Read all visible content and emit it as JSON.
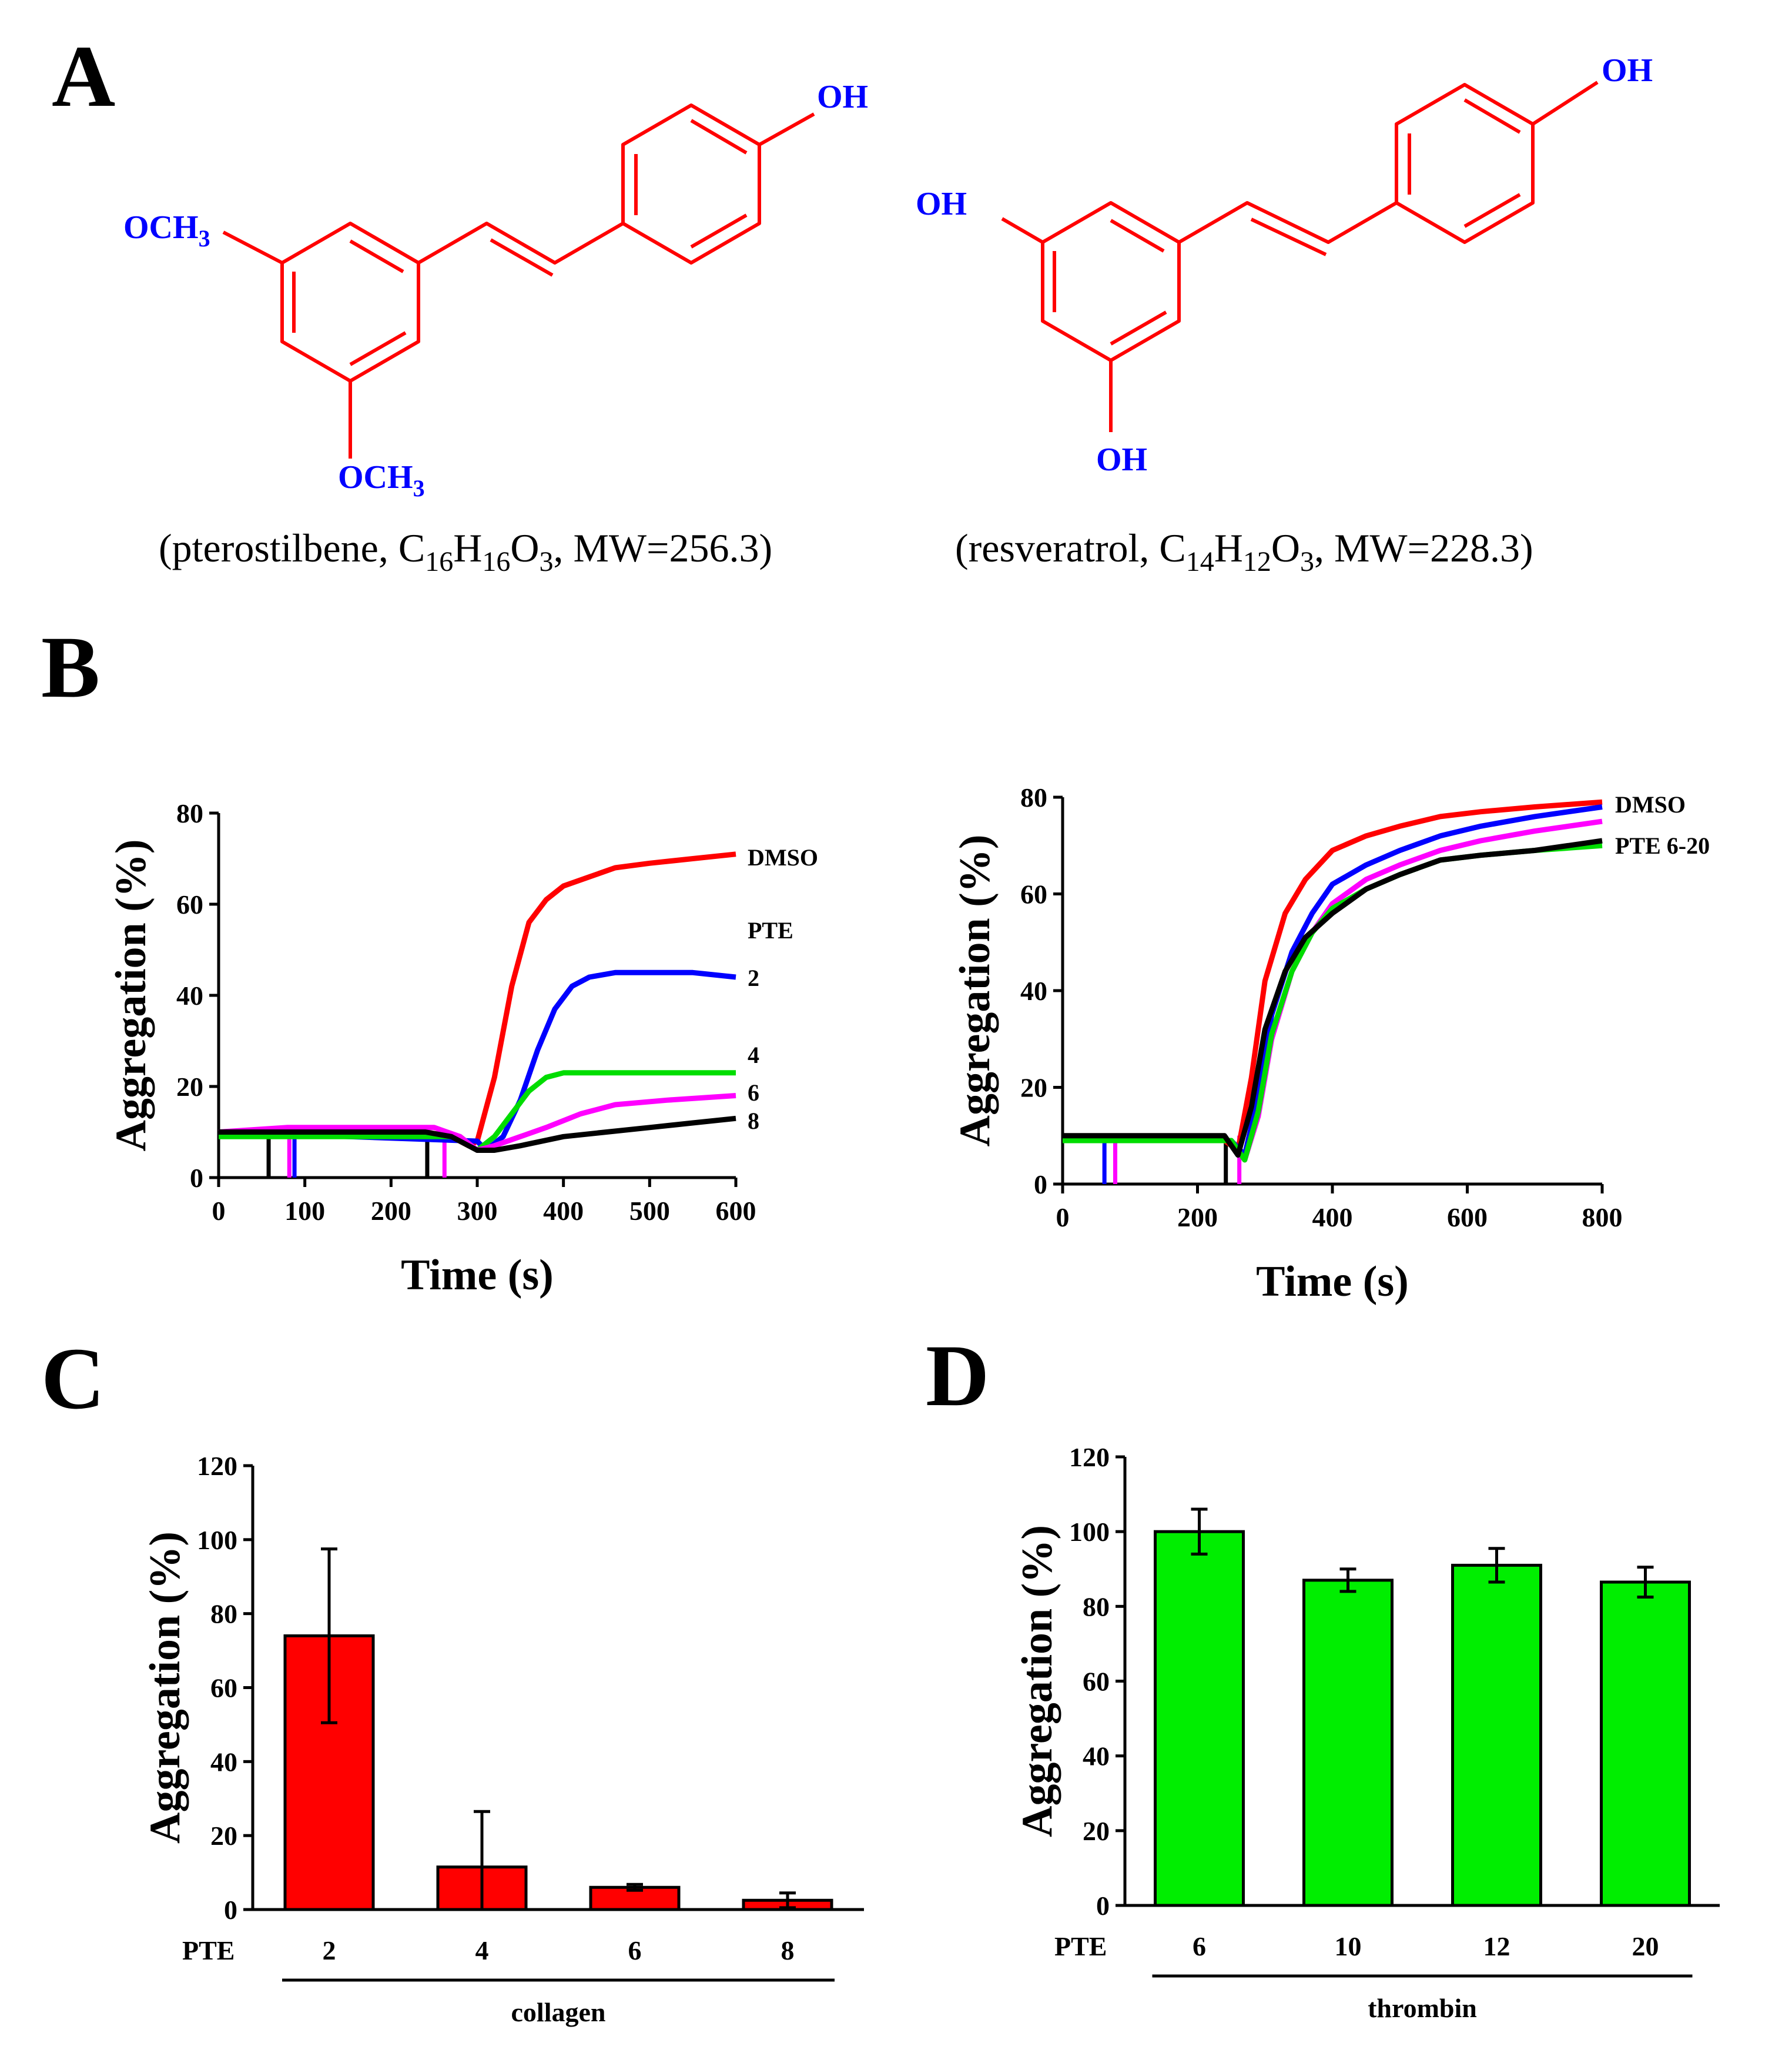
{
  "panels": {
    "a": {
      "letter": "A",
      "pterostilbene": {
        "substituents": {
          "oh": "OH",
          "och3_top": "OCH",
          "och3_top_sub": "3",
          "och3_bottom": "OCH",
          "och3_bottom_sub": "3"
        },
        "caption": {
          "p1": "(pterostilbene, C",
          "s1": "16",
          "p2": "H",
          "s2": "16",
          "p3": "O",
          "s3": "3",
          "p4": ", MW=256.3)"
        }
      },
      "resveratrol": {
        "substituents": {
          "oh_top": "OH",
          "oh_left": "OH",
          "oh_bottom": "OH"
        },
        "caption": {
          "p1": "(resveratrol, C",
          "s1": "14",
          "p2": "H",
          "s2": "12",
          "p3": "O",
          "s3": "3",
          "p4": ", MW=228.3)"
        }
      },
      "colors": {
        "ring": "#ff0000",
        "substituent": "#0000ff"
      }
    },
    "b": {
      "letter": "B"
    },
    "c": {
      "letter": "C"
    },
    "d": {
      "letter": "D"
    }
  },
  "chart_data": [
    {
      "id": "b_left",
      "type": "line",
      "xlabel": "Time (s)",
      "ylabel": "Aggregation (%)",
      "xlim": [
        0,
        600
      ],
      "ylim": [
        0,
        80
      ],
      "xticks": [
        0,
        100,
        200,
        300,
        400,
        500,
        600
      ],
      "yticks": [
        0,
        20,
        40,
        60,
        80
      ],
      "labels": {
        "dmso": "DMSO",
        "pte": "PTE",
        "c2": "2",
        "c4": "4",
        "c6": "6",
        "c8": "8"
      },
      "series": [
        {
          "color": "#ff0000",
          "x": [
            0,
            80,
            240,
            270,
            290,
            300,
            320,
            340,
            360,
            380,
            400,
            430,
            460,
            500,
            550,
            600
          ],
          "y": [
            10,
            10,
            10,
            9,
            7,
            8,
            22,
            42,
            56,
            61,
            64,
            66,
            68,
            69,
            70,
            71
          ]
        },
        {
          "color": "#0000ff",
          "x": [
            0,
            300,
            310,
            330,
            350,
            370,
            390,
            410,
            430,
            460,
            500,
            550,
            600
          ],
          "y": [
            10,
            8,
            6,
            9,
            17,
            28,
            37,
            42,
            44,
            45,
            45,
            45,
            44
          ]
        },
        {
          "color": "#00dd00",
          "x": [
            0,
            280,
            300,
            320,
            340,
            360,
            380,
            400,
            420,
            460,
            520,
            600
          ],
          "y": [
            9,
            9,
            6,
            9,
            14,
            19,
            22,
            23,
            23,
            23,
            23,
            23
          ]
        },
        {
          "color": "#ff00ff",
          "x": [
            0,
            80,
            250,
            280,
            300,
            320,
            350,
            380,
            420,
            460,
            520,
            600
          ],
          "y": [
            10,
            11,
            11,
            9,
            6,
            7,
            9,
            11,
            14,
            16,
            17,
            18
          ]
        },
        {
          "color": "#000000",
          "x": [
            0,
            240,
            270,
            300,
            320,
            350,
            400,
            450,
            500,
            550,
            600
          ],
          "y": [
            10,
            10,
            9,
            6,
            6,
            7,
            9,
            10,
            11,
            12,
            13
          ]
        }
      ],
      "drops": [
        {
          "color": "#000000",
          "x": 58
        },
        {
          "color": "#ff00ff",
          "x": 82
        },
        {
          "color": "#0000ff",
          "x": 88
        },
        {
          "color": "#000000",
          "x": 242
        },
        {
          "color": "#ff00ff",
          "x": 262
        }
      ]
    },
    {
      "id": "b_right",
      "type": "line",
      "xlabel": "Time (s)",
      "ylabel": "Aggregation (%)",
      "xlim": [
        0,
        800
      ],
      "ylim": [
        0,
        80
      ],
      "xticks": [
        0,
        200,
        400,
        600,
        800
      ],
      "yticks": [
        0,
        20,
        40,
        60,
        80
      ],
      "labels": {
        "dmso": "DMSO",
        "pte": "PTE 6-20"
      },
      "series": [
        {
          "color": "#ff0000",
          "x": [
            0,
            240,
            260,
            280,
            300,
            330,
            360,
            400,
            450,
            500,
            560,
            620,
            700,
            800
          ],
          "y": [
            9,
            9,
            7,
            22,
            42,
            56,
            63,
            69,
            72,
            74,
            76,
            77,
            78,
            79
          ]
        },
        {
          "color": "#0000ff",
          "x": [
            0,
            250,
            270,
            290,
            310,
            340,
            370,
            400,
            450,
            500,
            560,
            620,
            700,
            800
          ],
          "y": [
            9,
            9,
            6,
            18,
            35,
            48,
            56,
            62,
            66,
            69,
            72,
            74,
            76,
            78
          ]
        },
        {
          "color": "#ff00ff",
          "x": [
            0,
            250,
            270,
            290,
            310,
            340,
            370,
            400,
            450,
            500,
            560,
            620,
            700,
            800
          ],
          "y": [
            9,
            9,
            5,
            14,
            30,
            44,
            52,
            58,
            63,
            66,
            69,
            71,
            73,
            75
          ]
        },
        {
          "color": "#00dd00",
          "x": [
            0,
            250,
            270,
            290,
            310,
            340,
            370,
            400,
            450,
            500,
            560,
            620,
            700,
            800
          ],
          "y": [
            9,
            9,
            5,
            15,
            31,
            44,
            52,
            57,
            61,
            64,
            67,
            68,
            69,
            70
          ]
        },
        {
          "color": "#000000",
          "x": [
            0,
            240,
            260,
            280,
            300,
            330,
            360,
            400,
            450,
            500,
            560,
            620,
            700,
            800
          ],
          "y": [
            10,
            10,
            6,
            16,
            32,
            44,
            51,
            56,
            61,
            64,
            67,
            68,
            69,
            71
          ]
        }
      ],
      "drops": [
        {
          "color": "#0000ff",
          "x": 62
        },
        {
          "color": "#ff00ff",
          "x": 78
        },
        {
          "color": "#000000",
          "x": 242
        },
        {
          "color": "#ff00ff",
          "x": 262
        }
      ]
    },
    {
      "id": "c",
      "type": "bar",
      "ylabel": "Aggregation (%)",
      "prefix": "PTE",
      "group_label": "collagen",
      "categories": [
        "2",
        "4",
        "6",
        "8"
      ],
      "values": [
        74,
        11.5,
        6,
        2.5
      ],
      "errors": [
        23.5,
        15,
        0.8,
        2
      ],
      "ylim": [
        0,
        120
      ],
      "yticks": [
        0,
        20,
        40,
        60,
        80,
        100,
        120
      ],
      "color": "#ff0000"
    },
    {
      "id": "d",
      "type": "bar",
      "ylabel": "Aggregation (%)",
      "prefix": "PTE",
      "group_label": "thrombin",
      "categories": [
        "6",
        "10",
        "12",
        "20"
      ],
      "values": [
        100,
        87,
        91,
        86.5
      ],
      "errors": [
        6,
        3,
        4.5,
        4
      ],
      "ylim": [
        0,
        120
      ],
      "yticks": [
        0,
        20,
        40,
        60,
        80,
        100,
        120
      ],
      "color": "#00ee00"
    }
  ]
}
